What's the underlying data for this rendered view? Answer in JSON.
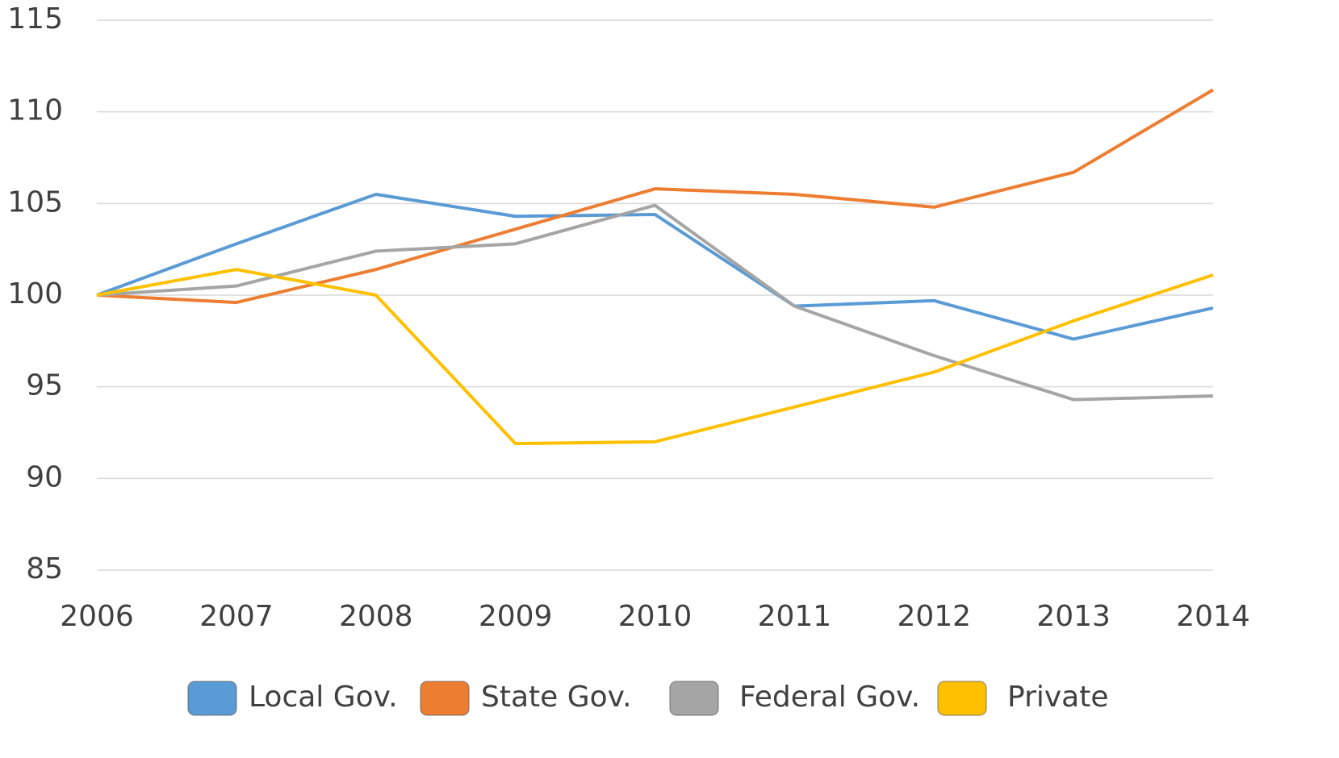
{
  "chart_data": {
    "type": "line",
    "x": [
      2006,
      2007,
      2008,
      2009,
      2010,
      2011,
      2012,
      2013,
      2014
    ],
    "xlim": [
      2006,
      2014
    ],
    "xticks": [
      2006,
      2007,
      2008,
      2009,
      2010,
      2011,
      2012,
      2013,
      2014
    ],
    "ylim": [
      85,
      115
    ],
    "yticks": [
      85,
      90,
      95,
      100,
      105,
      110,
      115
    ],
    "grid": true,
    "legend": "bottom",
    "series": [
      {
        "name": "Local Gov.",
        "color": "#5b9bd5",
        "values": [
          100,
          102.8,
          105.5,
          104.3,
          104.4,
          99.4,
          99.7,
          97.6,
          99.3
        ]
      },
      {
        "name": "State Gov.",
        "color": "#ed7d31",
        "values": [
          100,
          99.6,
          101.4,
          103.6,
          105.8,
          105.5,
          104.8,
          106.7,
          111.2
        ]
      },
      {
        "name": "Federal Gov.",
        "color": "#a5a5a5",
        "values": [
          100,
          100.5,
          102.4,
          102.8,
          104.9,
          99.4,
          96.7,
          94.3,
          94.5
        ]
      },
      {
        "name": "Private",
        "color": "#ffc000",
        "values": [
          100,
          101.4,
          100.0,
          91.9,
          92.0,
          93.9,
          95.8,
          98.6,
          101.1
        ]
      }
    ]
  }
}
